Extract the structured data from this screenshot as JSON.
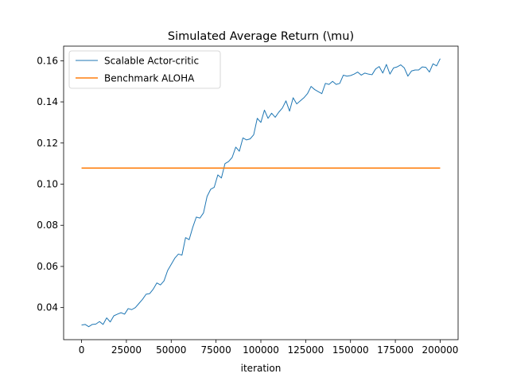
{
  "chart_data": {
    "type": "line",
    "title": "Simulated Average Return (\\mu)",
    "xlabel": "iteration",
    "ylabel": "",
    "xlim": [
      -10000,
      210000
    ],
    "ylim": [
      0.0244,
      0.1671
    ],
    "grid": false,
    "legend_position": "top-left",
    "x_ticks": [
      0,
      25000,
      50000,
      75000,
      100000,
      125000,
      150000,
      175000,
      200000
    ],
    "x_tick_labels": [
      "0",
      "25000",
      "50000",
      "75000",
      "100000",
      "125000",
      "150000",
      "175000",
      "200000"
    ],
    "y_ticks": [
      0.04,
      0.06,
      0.08,
      0.1,
      0.12,
      0.14,
      0.16
    ],
    "y_tick_labels": [
      "0.04",
      "0.06",
      "0.08",
      "0.10",
      "0.12",
      "0.14",
      "0.16"
    ],
    "series": [
      {
        "name": "Scalable Actor-critic",
        "color": "#1f77b4",
        "x": [
          0,
          2000,
          4000,
          6000,
          8000,
          10000,
          12000,
          14000,
          16000,
          18000,
          20000,
          22000,
          24000,
          26000,
          28000,
          30000,
          32000,
          34000,
          36000,
          38000,
          40000,
          42000,
          44000,
          46000,
          48000,
          50000,
          52000,
          54000,
          56000,
          58000,
          60000,
          62000,
          64000,
          66000,
          68000,
          70000,
          72000,
          74000,
          76000,
          78000,
          80000,
          82000,
          84000,
          86000,
          88000,
          90000,
          92000,
          94000,
          96000,
          98000,
          100000,
          102000,
          104000,
          106000,
          108000,
          110000,
          112000,
          114000,
          116000,
          118000,
          120000,
          122000,
          124000,
          126000,
          128000,
          130000,
          132000,
          134000,
          136000,
          138000,
          140000,
          142000,
          144000,
          146000,
          148000,
          150000,
          152000,
          154000,
          156000,
          158000,
          160000,
          162000,
          164000,
          166000,
          168000,
          170000,
          172000,
          174000,
          176000,
          178000,
          180000,
          182000,
          184000,
          186000,
          188000,
          190000,
          192000,
          194000,
          196000,
          198000,
          200000
        ],
        "values": [
          0.0315,
          0.0318,
          0.0307,
          0.0318,
          0.032,
          0.0332,
          0.0318,
          0.035,
          0.033,
          0.036,
          0.0368,
          0.0375,
          0.0368,
          0.0395,
          0.039,
          0.04,
          0.042,
          0.044,
          0.0465,
          0.0468,
          0.049,
          0.052,
          0.051,
          0.053,
          0.058,
          0.061,
          0.064,
          0.066,
          0.0655,
          0.074,
          0.073,
          0.079,
          0.084,
          0.0835,
          0.086,
          0.094,
          0.0975,
          0.0985,
          0.1045,
          0.103,
          0.11,
          0.111,
          0.113,
          0.118,
          0.116,
          0.1225,
          0.1215,
          0.122,
          0.124,
          0.132,
          0.13,
          0.136,
          0.132,
          0.1345,
          0.1325,
          0.135,
          0.137,
          0.1405,
          0.1355,
          0.142,
          0.139,
          0.1405,
          0.142,
          0.144,
          0.1475,
          0.146,
          0.145,
          0.144,
          0.149,
          0.1485,
          0.15,
          0.1485,
          0.149,
          0.153,
          0.1525,
          0.1528,
          0.1535,
          0.1545,
          0.153,
          0.154,
          0.1535,
          0.1532,
          0.156,
          0.1572,
          0.154,
          0.1582,
          0.1535,
          0.1565,
          0.157,
          0.158,
          0.1565,
          0.1525,
          0.155,
          0.1555,
          0.1555,
          0.157,
          0.1568,
          0.1545,
          0.1585,
          0.1575,
          0.161
        ]
      },
      {
        "name": "Benchmark ALOHA",
        "color": "#ff7f0e",
        "x": [
          0,
          200000
        ],
        "values": [
          0.1078,
          0.1078
        ]
      }
    ]
  }
}
